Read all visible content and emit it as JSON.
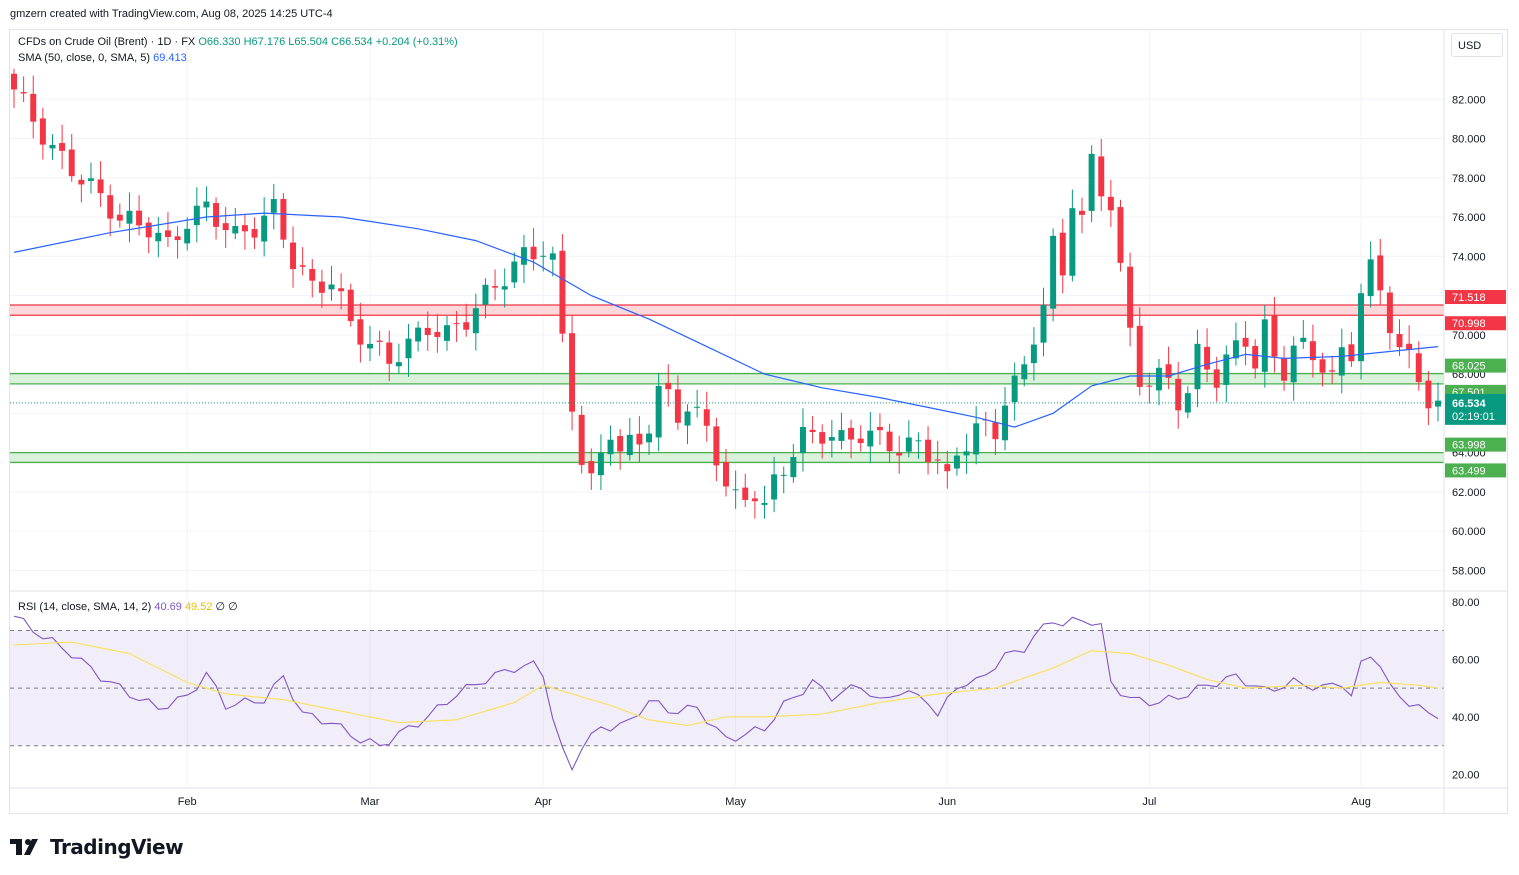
{
  "header": {
    "created_by": "gmzern created with TradingView.com, Aug 08, 2025 14:25 UTC-4"
  },
  "legend": {
    "symbol": "CFDs on Crude Oil (Brent) · 1D · FX",
    "open": "O66.330",
    "high": "H67.176",
    "low": "L65.504",
    "close": "C66.534",
    "change": "+0.204 (+0.31%)",
    "sma_label": "SMA (50, close, 0, SMA, 5)",
    "sma_value": "69.413",
    "rsi_label": "RSI (14, close, SMA, 14, 2)",
    "rsi_value": "40.69",
    "rsi_ma_value": "49.52",
    "rsi_extra": "∅ ∅"
  },
  "currency_button": "USD",
  "brand": {
    "name": "TradingView"
  },
  "colors": {
    "up": "#089981",
    "down": "#f23645",
    "sma": "#2962ff",
    "rsi": "#7e57c2",
    "rsi_ma": "#f7e15a",
    "resistance_fill": "#fcd4d7",
    "resistance_line": "#f23645",
    "support_fill": "#d6f0d8",
    "support_line": "#4caf50"
  },
  "chart_data": [
    {
      "type": "candlestick",
      "title": "CFDs on Crude Oil (Brent) · 1D · FX",
      "y_ticks": [
        "58.000",
        "60.000",
        "62.000",
        "64.000",
        "66.000",
        "68.000",
        "70.000",
        "72.000",
        "74.000",
        "76.000",
        "78.000",
        "80.000",
        "82.000"
      ],
      "x_ticks": [
        "Feb",
        "Mar",
        "Apr",
        "May",
        "Jun",
        "Jul",
        "Aug"
      ],
      "ylim": [
        57,
        84
      ],
      "last_price": "66.534",
      "countdown": "02:19:01",
      "zones": [
        {
          "kind": "resistance",
          "upper": 71.518,
          "lower": 70.998,
          "upper_label": "71.518",
          "lower_label": "70.998"
        },
        {
          "kind": "support",
          "upper": 68.025,
          "lower": 67.501,
          "upper_label": "68.025",
          "lower_label": "67.501"
        },
        {
          "kind": "support",
          "upper": 63.998,
          "lower": 63.499,
          "upper_label": "63.998",
          "lower_label": "63.499"
        }
      ],
      "close_path": [
        [
          0,
          82.5
        ],
        [
          2,
          81.0
        ],
        [
          4,
          79.4
        ],
        [
          7,
          78.0
        ],
        [
          9,
          77.0
        ],
        [
          11,
          75.9
        ],
        [
          14,
          75.5
        ],
        [
          16,
          74.5
        ],
        [
          18,
          75.8
        ],
        [
          20,
          76.5
        ],
        [
          23,
          75.0
        ],
        [
          25,
          75.5
        ],
        [
          27,
          76.4
        ],
        [
          29,
          73.8
        ],
        [
          31,
          72.4
        ],
        [
          33,
          72.8
        ],
        [
          35,
          70.6
        ],
        [
          37,
          69.5
        ],
        [
          39,
          68.7
        ],
        [
          41,
          69.5
        ],
        [
          43,
          70.4
        ],
        [
          45,
          70.0
        ],
        [
          47,
          70.8
        ],
        [
          49,
          72.0
        ],
        [
          51,
          73.0
        ],
        [
          53,
          74.0
        ],
        [
          55,
          74.4
        ],
        [
          56,
          73.7
        ],
        [
          57,
          69.8
        ],
        [
          58,
          66.6
        ],
        [
          59,
          63.5
        ],
        [
          60,
          62.4
        ],
        [
          61,
          64.0
        ],
        [
          62,
          65.2
        ],
        [
          63,
          63.9
        ],
        [
          64,
          64.4
        ],
        [
          65,
          64.7
        ],
        [
          66,
          65.4
        ],
        [
          67,
          67.0
        ],
        [
          68,
          66.9
        ],
        [
          69,
          66.0
        ],
        [
          70,
          66.3
        ],
        [
          71,
          65.8
        ],
        [
          72,
          65.3
        ],
        [
          73,
          63.9
        ],
        [
          74,
          62.2
        ],
        [
          75,
          61.6
        ],
        [
          77,
          62.0
        ],
        [
          78,
          61.1
        ],
        [
          79,
          62.5
        ],
        [
          80,
          63.3
        ],
        [
          82,
          64.8
        ],
        [
          84,
          65.0
        ],
        [
          86,
          64.6
        ],
        [
          88,
          65.0
        ],
        [
          90,
          64.7
        ],
        [
          92,
          64.2
        ],
        [
          94,
          64.4
        ],
        [
          96,
          63.7
        ],
        [
          97,
          62.5
        ],
        [
          98,
          63.9
        ],
        [
          100,
          65.3
        ],
        [
          102,
          65.0
        ],
        [
          103,
          66.8
        ],
        [
          105,
          68.2
        ],
        [
          106,
          70.0
        ],
        [
          107,
          71.7
        ],
        [
          108,
          74.5
        ],
        [
          109,
          73.0
        ],
        [
          110,
          77.0
        ],
        [
          111,
          76.0
        ],
        [
          112,
          78.7
        ],
        [
          113,
          77.3
        ],
        [
          114,
          76.8
        ],
        [
          115,
          73.3
        ],
        [
          116,
          70.0
        ],
        [
          117,
          67.8
        ],
        [
          118,
          67.6
        ],
        [
          119,
          67.8
        ],
        [
          120,
          67.7
        ],
        [
          121,
          66.7
        ],
        [
          122,
          67.0
        ],
        [
          123,
          69.0
        ],
        [
          124,
          68.4
        ],
        [
          125,
          67.8
        ],
        [
          126,
          68.7
        ],
        [
          127,
          69.3
        ],
        [
          128,
          69.8
        ],
        [
          129,
          68.6
        ],
        [
          130,
          70.3
        ],
        [
          131,
          68.7
        ],
        [
          132,
          68.2
        ],
        [
          133,
          69.5
        ],
        [
          134,
          69.3
        ],
        [
          135,
          68.8
        ],
        [
          136,
          68.6
        ],
        [
          137,
          67.9
        ],
        [
          138,
          68.9
        ],
        [
          139,
          69.0
        ],
        [
          140,
          72.5
        ],
        [
          141,
          73.4
        ],
        [
          142,
          72.0
        ],
        [
          143,
          70.6
        ],
        [
          144,
          69.5
        ],
        [
          145,
          68.7
        ],
        [
          146,
          67.6
        ],
        [
          147,
          66.8
        ],
        [
          148,
          66.5
        ]
      ],
      "sma_path": [
        [
          0,
          74.2
        ],
        [
          10,
          75.2
        ],
        [
          20,
          76.0
        ],
        [
          26,
          76.2
        ],
        [
          34,
          76.0
        ],
        [
          42,
          75.4
        ],
        [
          48,
          74.8
        ],
        [
          54,
          73.7
        ],
        [
          60,
          72.0
        ],
        [
          66,
          70.8
        ],
        [
          72,
          69.4
        ],
        [
          78,
          68.0
        ],
        [
          84,
          67.3
        ],
        [
          90,
          66.8
        ],
        [
          96,
          66.2
        ],
        [
          100,
          65.8
        ],
        [
          104,
          65.3
        ],
        [
          108,
          66.0
        ],
        [
          112,
          67.4
        ],
        [
          116,
          67.9
        ],
        [
          120,
          67.9
        ],
        [
          124,
          68.5
        ],
        [
          128,
          69.0
        ],
        [
          132,
          68.8
        ],
        [
          138,
          68.9
        ],
        [
          144,
          69.2
        ],
        [
          148,
          69.4
        ]
      ],
      "series": [
        {
          "name": "SMA (50, close, 0, SMA, 5)",
          "last_value": "69.413"
        }
      ]
    },
    {
      "type": "line",
      "title": "RSI (14, close, SMA, 14, 2)",
      "y_ticks": [
        "20.00",
        "40.00",
        "60.00",
        "80.00"
      ],
      "ylim": [
        16,
        82
      ],
      "bands": {
        "upper": 70,
        "middle": 50,
        "lower": 30
      },
      "series": [
        {
          "name": "RSI",
          "last_value": "40.69",
          "points": [
            [
              0,
              75
            ],
            [
              3,
              68
            ],
            [
              6,
              62
            ],
            [
              9,
              54
            ],
            [
              12,
              48
            ],
            [
              15,
              43
            ],
            [
              18,
              47
            ],
            [
              20,
              55
            ],
            [
              22,
              44
            ],
            [
              26,
              46
            ],
            [
              28,
              54
            ],
            [
              30,
              41
            ],
            [
              33,
              38
            ],
            [
              36,
              32
            ],
            [
              38,
              30
            ],
            [
              41,
              36
            ],
            [
              43,
              40
            ],
            [
              46,
              48
            ],
            [
              49,
              53
            ],
            [
              52,
              57
            ],
            [
              54,
              58
            ],
            [
              55,
              55
            ],
            [
              56,
              40
            ],
            [
              57,
              28
            ],
            [
              58,
              22
            ],
            [
              59,
              30
            ],
            [
              61,
              36
            ],
            [
              64,
              38
            ],
            [
              66,
              46
            ],
            [
              68,
              42
            ],
            [
              71,
              43
            ],
            [
              74,
              32
            ],
            [
              76,
              34
            ],
            [
              78,
              36
            ],
            [
              80,
              44
            ],
            [
              83,
              52
            ],
            [
              85,
              47
            ],
            [
              88,
              51
            ],
            [
              90,
              45
            ],
            [
              92,
              49
            ],
            [
              95,
              46
            ],
            [
              96,
              40
            ],
            [
              98,
              51
            ],
            [
              100,
              52
            ],
            [
              103,
              61
            ],
            [
              105,
              64
            ],
            [
              107,
              71
            ],
            [
              108,
              74
            ],
            [
              109,
              72
            ],
            [
              111,
              74
            ],
            [
              112,
              73
            ],
            [
              113,
              71
            ],
            [
              114,
              52
            ],
            [
              116,
              46
            ],
            [
              119,
              45
            ],
            [
              122,
              48
            ],
            [
              124,
              51
            ],
            [
              127,
              54
            ],
            [
              130,
              49
            ],
            [
              133,
              52
            ],
            [
              136,
              50
            ],
            [
              138,
              52
            ],
            [
              139,
              47
            ],
            [
              140,
              58
            ],
            [
              141,
              62
            ],
            [
              142,
              58
            ],
            [
              143,
              50
            ],
            [
              145,
              45
            ],
            [
              147,
              41
            ],
            [
              148,
              41
            ]
          ]
        },
        {
          "name": "RSI-based MA",
          "last_value": "49.52",
          "points": [
            [
              0,
              65
            ],
            [
              6,
              66
            ],
            [
              12,
              62
            ],
            [
              18,
              52
            ],
            [
              22,
              48
            ],
            [
              28,
              46
            ],
            [
              34,
              42
            ],
            [
              40,
              38
            ],
            [
              46,
              39
            ],
            [
              52,
              45
            ],
            [
              55,
              51
            ],
            [
              58,
              48
            ],
            [
              62,
              44
            ],
            [
              66,
              39
            ],
            [
              70,
              37
            ],
            [
              74,
              40
            ],
            [
              78,
              40
            ],
            [
              84,
              41
            ],
            [
              90,
              45
            ],
            [
              96,
              48
            ],
            [
              102,
              50
            ],
            [
              108,
              57
            ],
            [
              112,
              63
            ],
            [
              116,
              62
            ],
            [
              120,
              58
            ],
            [
              124,
              53
            ],
            [
              128,
              50
            ],
            [
              134,
              51
            ],
            [
              138,
              50
            ],
            [
              142,
              52
            ],
            [
              146,
              51
            ],
            [
              148,
              50
            ]
          ]
        }
      ]
    }
  ]
}
